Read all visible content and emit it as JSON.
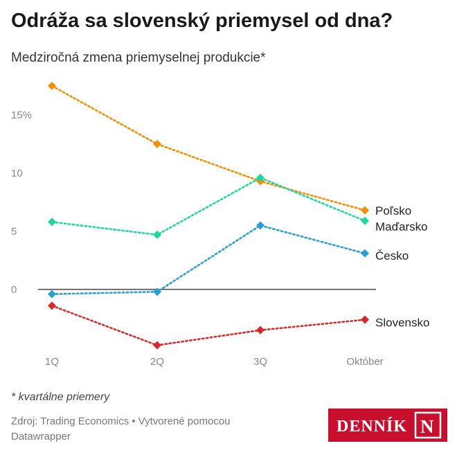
{
  "title": "Odráža sa slovenský priemysel od dna?",
  "subtitle": "Medziročná zmena priemyselnej produkcie*",
  "footnote": "* kvartálne priemery",
  "source": "Zdroj: Trading Economics • Vytvorené pomocou Datawrapper",
  "logo_text": "DENNÍK",
  "logo_letter": "N",
  "colors": {
    "logo_bg": "#c8102e",
    "text": "#222222",
    "axis": "#888888"
  },
  "chart_data": {
    "type": "line",
    "categories": [
      "1Q",
      "2Q",
      "3Q",
      "Október"
    ],
    "yticks": [
      {
        "value": 15,
        "label": "15%"
      },
      {
        "value": 10,
        "label": "10"
      },
      {
        "value": 5,
        "label": "5"
      },
      {
        "value": 0,
        "label": "0"
      }
    ],
    "ylim": [
      -5,
      18
    ],
    "grid": false,
    "zero_line": true,
    "series": [
      {
        "name": "Poľsko",
        "color": "#f28e00",
        "values": [
          17.5,
          12.5,
          9.3,
          6.8
        ]
      },
      {
        "name": "Maďarsko",
        "color": "#1fd69e",
        "values": [
          5.8,
          4.7,
          9.6,
          5.9
        ]
      },
      {
        "name": "Česko",
        "color": "#2aa0d0",
        "values": [
          -0.4,
          -0.2,
          5.5,
          3.1
        ]
      },
      {
        "name": "Slovensko",
        "color": "#d62b2b",
        "values": [
          -1.4,
          -4.8,
          -3.5,
          -2.6
        ]
      }
    ]
  }
}
